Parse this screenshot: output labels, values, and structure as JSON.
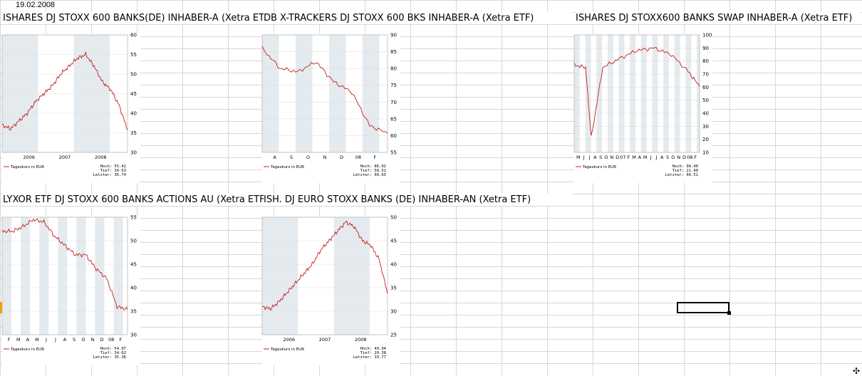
{
  "sheet": {
    "date_cell": "19.02.2008"
  },
  "charts": [
    {
      "title": "ISHARES DJ STOXX 600 BANKS(DE) INHABER-A (Xetra ETF)",
      "ticks_y": [
        "60",
        "55",
        "50",
        "45",
        "40",
        "35",
        "30"
      ],
      "ticks_x": [
        "2006",
        "2007",
        "2008"
      ],
      "legend": "Tageskurs in EUR",
      "stats": [
        "Hoch: 55.42",
        "Tief: 34.63",
        "Letzter: 35.74"
      ]
    },
    {
      "title": "DB X-TRACKERS DJ STOXX 600 BKS INHABER-A (Xetra ETF)",
      "ticks_y": [
        "90",
        "85",
        "80",
        "75",
        "70",
        "65",
        "60",
        "55"
      ],
      "ticks_x": [
        "A",
        "S",
        "O",
        "N",
        "D",
        "08",
        "F"
      ],
      "legend": "Tageskurs in EUR",
      "stats": [
        "Hoch: 86.02",
        "Tief: 58.51",
        "Letzter: 60.65"
      ]
    },
    {
      "title": "ISHARES DJ STOXX600 BANKS SWAP INHABER-A (Xetra ETF)",
      "ticks_y": [
        "100",
        "90",
        "80",
        "70",
        "60",
        "50",
        "40",
        "30",
        "20",
        "10"
      ],
      "ticks_x": [
        "M",
        "J",
        "J",
        "A",
        "S",
        "O",
        "N",
        "D",
        "07",
        "F",
        "M",
        "A",
        "M",
        "J",
        "J",
        "A",
        "S",
        "O",
        "N",
        "D",
        "08",
        "F"
      ],
      "legend": "Tageskurs in EUR",
      "stats": [
        "Hoch: 90.40",
        "Tief: 21.40",
        "Letzter: 60.51"
      ]
    },
    {
      "title": "LYXOR ETF DJ STOXX 600 BANKS ACTIONS AU (Xetra ETF)",
      "ticks_y": [
        "55",
        "50",
        "45",
        "40",
        "35",
        "30"
      ],
      "ticks_x": [
        "F",
        "M",
        "A",
        "M",
        "J",
        "J",
        "A",
        "S",
        "O",
        "N",
        "D",
        "08",
        "F"
      ],
      "legend": "Tageskurs in EUR",
      "stats": [
        "Hoch: 54.97",
        "Tief: 34.62",
        "Letzter: 35.36"
      ]
    },
    {
      "title": "ISH. DJ EURO STOXX BANKS (DE) INHABER-AN (Xetra ETF)",
      "ticks_y": [
        "50",
        "45",
        "40",
        "35",
        "30",
        "25"
      ],
      "ticks_x": [
        "2006",
        "2007",
        "2008"
      ],
      "legend": "Tageskurs in EUR",
      "stats": [
        "Hoch: 49.94",
        "Tief: 29.38",
        "Letzter: 33.77"
      ]
    }
  ],
  "chart_data": [
    {
      "type": "line",
      "title": "ISHARES DJ STOXX 600 BANKS(DE) INHABER-A (Xetra ETF)",
      "ylim": [
        30,
        60
      ],
      "x": [
        "2005-08",
        "2005-10",
        "2005-12",
        "2006-02",
        "2006-04",
        "2006-06",
        "2006-08",
        "2006-10",
        "2006-12",
        "2007-02",
        "2007-04",
        "2007-06",
        "2007-08",
        "2007-10",
        "2007-12",
        "2008-02"
      ],
      "series": [
        {
          "name": "Tageskurs in EUR",
          "values": [
            37,
            36,
            38,
            40,
            43,
            45,
            47,
            50,
            52,
            54,
            55,
            52,
            48,
            46,
            42,
            35.7
          ]
        }
      ]
    },
    {
      "type": "line",
      "title": "DB X-TRACKERS DJ STOXX 600 BKS INHABER-A (Xetra ETF)",
      "ylim": [
        55,
        90
      ],
      "x": [
        "2007-07",
        "2007-08",
        "2007-09",
        "2007-10",
        "2007-11",
        "2007-12",
        "2008-01",
        "2008-02"
      ],
      "series": [
        {
          "name": "Tageskurs in EUR",
          "values": [
            86,
            80,
            79,
            82,
            76,
            73,
            63,
            60.65
          ]
        }
      ]
    },
    {
      "type": "line",
      "title": "ISHARES DJ STOXX600 BANKS SWAP INHABER-A (Xetra ETF)",
      "ylim": [
        10,
        100
      ],
      "x": [
        "2006-04",
        "2006-06",
        "2006-07",
        "2006-09",
        "2006-12",
        "2007-03",
        "2007-06",
        "2007-09",
        "2007-12",
        "2008-02"
      ],
      "series": [
        {
          "name": "Tageskurs in EUR",
          "values": [
            77,
            75,
            21.4,
            75,
            82,
            88,
            90,
            85,
            72,
            60.51
          ]
        }
      ]
    },
    {
      "type": "line",
      "title": "LYXOR ETF DJ STOXX 600 BANKS ACTIONS AU (Xetra ETF)",
      "ylim": [
        30,
        55
      ],
      "x": [
        "2007-02",
        "2007-03",
        "2007-04",
        "2007-05",
        "2007-06",
        "2007-07",
        "2007-08",
        "2007-09",
        "2007-10",
        "2007-11",
        "2007-12",
        "2008-01",
        "2008-02"
      ],
      "series": [
        {
          "name": "Tageskurs in EUR",
          "values": [
            52,
            52,
            53,
            54.5,
            54,
            51,
            49,
            47,
            47,
            44,
            42,
            36,
            35.36
          ]
        }
      ]
    },
    {
      "type": "line",
      "title": "ISH. DJ EURO STOXX BANKS (DE) INHABER-AN (Xetra ETF)",
      "ylim": [
        25,
        50
      ],
      "x": [
        "2005-08",
        "2005-10",
        "2005-12",
        "2006-02",
        "2006-04",
        "2006-06",
        "2006-08",
        "2006-10",
        "2006-12",
        "2007-02",
        "2007-04",
        "2007-06",
        "2007-08",
        "2007-10",
        "2007-12",
        "2008-02"
      ],
      "series": [
        {
          "name": "Tageskurs in EUR",
          "values": [
            31,
            30.5,
            32,
            34,
            36,
            38,
            40,
            43,
            45,
            47,
            49,
            48,
            45,
            44,
            41,
            33.77
          ]
        }
      ]
    }
  ],
  "colors": {
    "series": "#c41e1e",
    "band": "#e4eaee",
    "grid": "#d6d6d6"
  }
}
